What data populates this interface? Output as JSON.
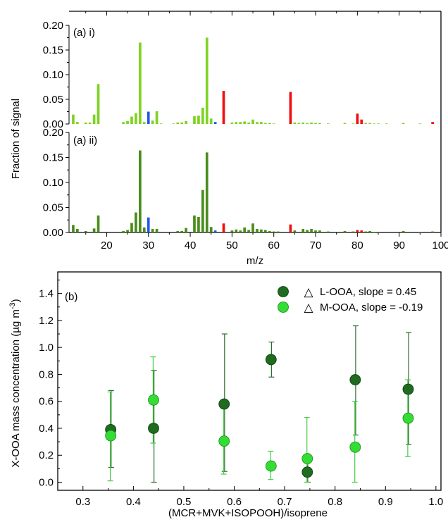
{
  "colors": {
    "light_green": "#7ed321",
    "dark_green": "#4a8c1c",
    "red": "#ee1111",
    "blue": "#2255ee",
    "l_ooa": "#1f6b1f",
    "m_ooa": "#33dd33",
    "l_ooa_bar": "#2c6a2c",
    "m_ooa_bar": "#44cc44"
  },
  "chart_data": [
    {
      "type": "bar",
      "panel_label": "(a) i)",
      "ylabel": "Fraction of signal",
      "xlabel": "",
      "xlim": [
        11,
        100
      ],
      "ylim": [
        0,
        0.2
      ],
      "yticks": [
        "0.00",
        "0.05",
        "0.10",
        "0.15",
        "0.20"
      ],
      "bars": [
        {
          "x": 12,
          "y": 0.019,
          "c": "g"
        },
        {
          "x": 13,
          "y": 0.004,
          "c": "g"
        },
        {
          "x": 15,
          "y": 0.003,
          "c": "g"
        },
        {
          "x": 16,
          "y": 0.003,
          "c": "g"
        },
        {
          "x": 17,
          "y": 0.019,
          "c": "g"
        },
        {
          "x": 18,
          "y": 0.081,
          "c": "g"
        },
        {
          "x": 24,
          "y": 0.004,
          "c": "g"
        },
        {
          "x": 25,
          "y": 0.006,
          "c": "g"
        },
        {
          "x": 26,
          "y": 0.015,
          "c": "g"
        },
        {
          "x": 27,
          "y": 0.022,
          "c": "g"
        },
        {
          "x": 28,
          "y": 0.165,
          "c": "g"
        },
        {
          "x": 29,
          "y": 0.004,
          "c": "g"
        },
        {
          "x": 30,
          "y": 0.025,
          "c": "b"
        },
        {
          "x": 31,
          "y": 0.007,
          "c": "g"
        },
        {
          "x": 32,
          "y": 0.026,
          "c": "g"
        },
        {
          "x": 33,
          "y": 0.001,
          "c": "g"
        },
        {
          "x": 36,
          "y": 0.001,
          "c": "g"
        },
        {
          "x": 37,
          "y": 0.003,
          "c": "g"
        },
        {
          "x": 38,
          "y": 0.003,
          "c": "g"
        },
        {
          "x": 39,
          "y": 0.006,
          "c": "g"
        },
        {
          "x": 41,
          "y": 0.016,
          "c": "g"
        },
        {
          "x": 42,
          "y": 0.017,
          "c": "g"
        },
        {
          "x": 43,
          "y": 0.033,
          "c": "g"
        },
        {
          "x": 44,
          "y": 0.175,
          "c": "g"
        },
        {
          "x": 45,
          "y": 0.011,
          "c": "g"
        },
        {
          "x": 46,
          "y": 0.004,
          "c": "b"
        },
        {
          "x": 48,
          "y": 0.067,
          "c": "r"
        },
        {
          "x": 50,
          "y": 0.003,
          "c": "g"
        },
        {
          "x": 51,
          "y": 0.004,
          "c": "g"
        },
        {
          "x": 52,
          "y": 0.004,
          "c": "g"
        },
        {
          "x": 53,
          "y": 0.005,
          "c": "g"
        },
        {
          "x": 54,
          "y": 0.003,
          "c": "g"
        },
        {
          "x": 55,
          "y": 0.009,
          "c": "g"
        },
        {
          "x": 56,
          "y": 0.004,
          "c": "g"
        },
        {
          "x": 57,
          "y": 0.004,
          "c": "g"
        },
        {
          "x": 58,
          "y": 0.002,
          "c": "g"
        },
        {
          "x": 59,
          "y": 0.002,
          "c": "g"
        },
        {
          "x": 60,
          "y": 0.001,
          "c": "g"
        },
        {
          "x": 64,
          "y": 0.065,
          "c": "r"
        },
        {
          "x": 65,
          "y": 0.003,
          "c": "g"
        },
        {
          "x": 66,
          "y": 0.002,
          "c": "g"
        },
        {
          "x": 67,
          "y": 0.003,
          "c": "g"
        },
        {
          "x": 68,
          "y": 0.002,
          "c": "g"
        },
        {
          "x": 69,
          "y": 0.003,
          "c": "g"
        },
        {
          "x": 70,
          "y": 0.002,
          "c": "g"
        },
        {
          "x": 71,
          "y": 0.002,
          "c": "g"
        },
        {
          "x": 73,
          "y": 0.001,
          "c": "g"
        },
        {
          "x": 77,
          "y": 0.002,
          "c": "g"
        },
        {
          "x": 79,
          "y": 0.001,
          "c": "g"
        },
        {
          "x": 80,
          "y": 0.021,
          "c": "r"
        },
        {
          "x": 81,
          "y": 0.009,
          "c": "r"
        },
        {
          "x": 82,
          "y": 0.002,
          "c": "g"
        },
        {
          "x": 83,
          "y": 0.002,
          "c": "g"
        },
        {
          "x": 84,
          "y": 0.001,
          "c": "g"
        },
        {
          "x": 85,
          "y": 0.001,
          "c": "g"
        },
        {
          "x": 87,
          "y": 0.001,
          "c": "g"
        },
        {
          "x": 91,
          "y": 0.002,
          "c": "g"
        },
        {
          "x": 95,
          "y": 0.001,
          "c": "g"
        },
        {
          "x": 98,
          "y": 0.004,
          "c": "r"
        }
      ]
    },
    {
      "type": "bar",
      "panel_label": "(a) ii)",
      "ylabel": "Fraction of signal",
      "xlabel": "m/z",
      "xlim": [
        11,
        100
      ],
      "ylim": [
        0,
        0.2
      ],
      "xticks": [
        "20",
        "30",
        "40",
        "50",
        "60",
        "70",
        "80",
        "90",
        "100"
      ],
      "yticks": [
        "0.00",
        "0.05",
        "0.10",
        "0.15",
        "0.20"
      ],
      "bars": [
        {
          "x": 12,
          "y": 0.015,
          "c": "d"
        },
        {
          "x": 13,
          "y": 0.007,
          "c": "d"
        },
        {
          "x": 15,
          "y": 0.003,
          "c": "d"
        },
        {
          "x": 17,
          "y": 0.008,
          "c": "d"
        },
        {
          "x": 18,
          "y": 0.034,
          "c": "d"
        },
        {
          "x": 24,
          "y": 0.003,
          "c": "d"
        },
        {
          "x": 25,
          "y": 0.005,
          "c": "d"
        },
        {
          "x": 26,
          "y": 0.019,
          "c": "d"
        },
        {
          "x": 27,
          "y": 0.04,
          "c": "d"
        },
        {
          "x": 28,
          "y": 0.164,
          "c": "d"
        },
        {
          "x": 29,
          "y": 0.01,
          "c": "d"
        },
        {
          "x": 30,
          "y": 0.03,
          "c": "b"
        },
        {
          "x": 31,
          "y": 0.007,
          "c": "d"
        },
        {
          "x": 32,
          "y": 0.007,
          "c": "d"
        },
        {
          "x": 37,
          "y": 0.003,
          "c": "d"
        },
        {
          "x": 38,
          "y": 0.003,
          "c": "d"
        },
        {
          "x": 39,
          "y": 0.009,
          "c": "d"
        },
        {
          "x": 41,
          "y": 0.034,
          "c": "d"
        },
        {
          "x": 42,
          "y": 0.031,
          "c": "d"
        },
        {
          "x": 43,
          "y": 0.085,
          "c": "d"
        },
        {
          "x": 44,
          "y": 0.16,
          "c": "d"
        },
        {
          "x": 45,
          "y": 0.011,
          "c": "d"
        },
        {
          "x": 46,
          "y": 0.004,
          "c": "b"
        },
        {
          "x": 48,
          "y": 0.018,
          "c": "r"
        },
        {
          "x": 50,
          "y": 0.004,
          "c": "d"
        },
        {
          "x": 51,
          "y": 0.006,
          "c": "d"
        },
        {
          "x": 52,
          "y": 0.004,
          "c": "d"
        },
        {
          "x": 53,
          "y": 0.01,
          "c": "d"
        },
        {
          "x": 54,
          "y": 0.005,
          "c": "d"
        },
        {
          "x": 55,
          "y": 0.018,
          "c": "d"
        },
        {
          "x": 56,
          "y": 0.007,
          "c": "d"
        },
        {
          "x": 57,
          "y": 0.006,
          "c": "d"
        },
        {
          "x": 58,
          "y": 0.005,
          "c": "d"
        },
        {
          "x": 59,
          "y": 0.003,
          "c": "d"
        },
        {
          "x": 60,
          "y": 0.002,
          "c": "d"
        },
        {
          "x": 61,
          "y": 0.002,
          "c": "d"
        },
        {
          "x": 64,
          "y": 0.016,
          "c": "r"
        },
        {
          "x": 65,
          "y": 0.004,
          "c": "d"
        },
        {
          "x": 67,
          "y": 0.007,
          "c": "d"
        },
        {
          "x": 68,
          "y": 0.005,
          "c": "d"
        },
        {
          "x": 69,
          "y": 0.007,
          "c": "d"
        },
        {
          "x": 70,
          "y": 0.004,
          "c": "d"
        },
        {
          "x": 71,
          "y": 0.004,
          "c": "d"
        },
        {
          "x": 73,
          "y": 0.002,
          "c": "d"
        },
        {
          "x": 77,
          "y": 0.003,
          "c": "d"
        },
        {
          "x": 79,
          "y": 0.002,
          "c": "d"
        },
        {
          "x": 80,
          "y": 0.005,
          "c": "r"
        },
        {
          "x": 81,
          "y": 0.004,
          "c": "r"
        },
        {
          "x": 82,
          "y": 0.002,
          "c": "d"
        },
        {
          "x": 83,
          "y": 0.003,
          "c": "d"
        },
        {
          "x": 84,
          "y": 0.001,
          "c": "d"
        },
        {
          "x": 85,
          "y": 0.001,
          "c": "d"
        },
        {
          "x": 91,
          "y": 0.003,
          "c": "d"
        },
        {
          "x": 95,
          "y": 0.001,
          "c": "d"
        },
        {
          "x": 98,
          "y": 0.002,
          "c": "d"
        }
      ]
    },
    {
      "type": "scatter",
      "panel_label": "(b)",
      "ylabel": "X-OOA mass concentration (µg m",
      "ylabel_sup": "-3",
      "ylabel_end": ")",
      "xlabel": "(MCR+MVK+ISOPOOH)/isoprene",
      "xlim": [
        0.25,
        1.01
      ],
      "ylim": [
        -0.06,
        1.56
      ],
      "xticks": [
        "0.3",
        "0.4",
        "0.5",
        "0.6",
        "0.7",
        "0.8",
        "0.9",
        "1.0"
      ],
      "yticks": [
        "0.0",
        "0.2",
        "0.4",
        "0.6",
        "0.8",
        "1.0",
        "1.2",
        "1.4"
      ],
      "legend": {
        "position": "top-right",
        "triangle": "△",
        "slope_prefix": "slope ="
      },
      "series": [
        {
          "name": "L-OOA",
          "slope": "0.45",
          "color_key": "l_ooa",
          "points": [
            {
              "x": 0.355,
              "y": 0.39,
              "lo": 0.11,
              "hi": 0.68
            },
            {
              "x": 0.44,
              "y": 0.4,
              "lo": 0.0,
              "hi": 0.83
            },
            {
              "x": 0.58,
              "y": 0.58,
              "lo": 0.08,
              "hi": 1.1
            },
            {
              "x": 0.673,
              "y": 0.91,
              "lo": 0.78,
              "hi": 1.04
            },
            {
              "x": 0.745,
              "y": 0.075,
              "lo": 0.0,
              "hi": 0.17
            },
            {
              "x": 0.84,
              "y": 0.76,
              "lo": 0.35,
              "hi": 1.16
            },
            {
              "x": 0.945,
              "y": 0.69,
              "lo": 0.28,
              "hi": 1.11
            }
          ]
        },
        {
          "name": "M-OOA",
          "slope": "-0.19",
          "color_key": "m_ooa",
          "points": [
            {
              "x": 0.355,
              "y": 0.345,
              "lo": 0.01,
              "hi": 0.67
            },
            {
              "x": 0.44,
              "y": 0.61,
              "lo": 0.29,
              "hi": 0.93
            },
            {
              "x": 0.58,
              "y": 0.305,
              "lo": 0.06,
              "hi": 0.55
            },
            {
              "x": 0.673,
              "y": 0.12,
              "lo": 0.02,
              "hi": 0.23
            },
            {
              "x": 0.745,
              "y": 0.175,
              "lo": 0.0,
              "hi": 0.48
            },
            {
              "x": 0.84,
              "y": 0.26,
              "lo": 0.0,
              "hi": 0.6
            },
            {
              "x": 0.945,
              "y": 0.475,
              "lo": 0.19,
              "hi": 0.76
            }
          ]
        }
      ]
    }
  ]
}
